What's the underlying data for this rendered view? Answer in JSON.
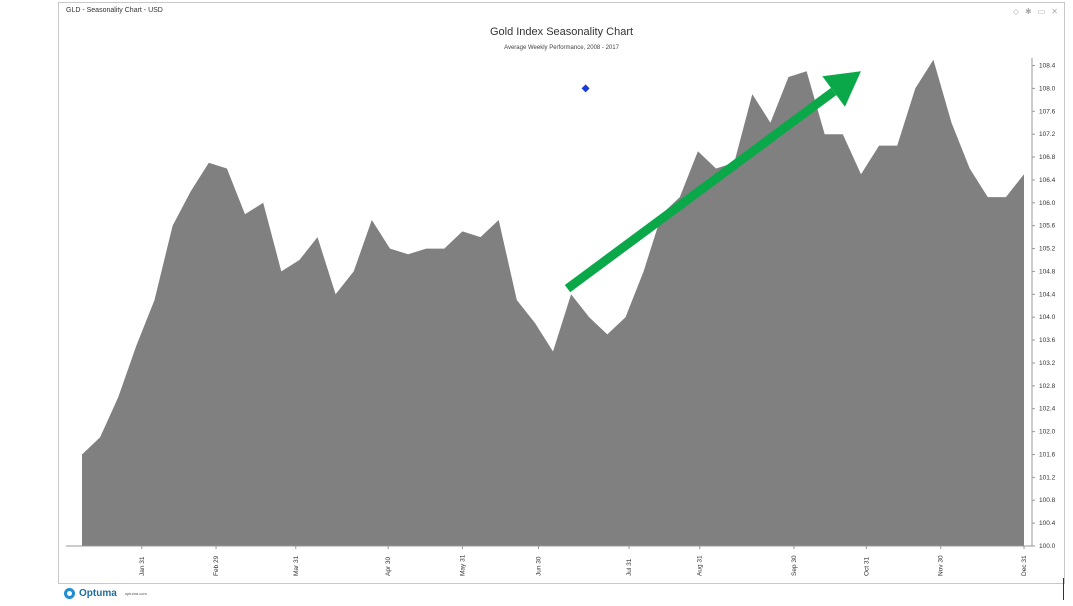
{
  "window": {
    "title": "GLD - Seasonality Chart - USD",
    "controls": [
      "◇",
      "✱",
      "▭",
      "✕"
    ]
  },
  "brand": {
    "name": "Optuma",
    "url": "optuma.com",
    "color": "#1e8fd6"
  },
  "colors": {
    "area": "#808080",
    "arrow": "#0ba84a",
    "marker": "#1a3adb",
    "axis": "#999999"
  },
  "chart_data": {
    "type": "area",
    "title": "Gold Index Seasonality Chart",
    "subtitle": "Average Weekly Performance, 2008 - 2017",
    "xlabel": "",
    "ylabel": "",
    "ylim": [
      100.0,
      108.6
    ],
    "yticks": [
      "100.0",
      "100.4",
      "100.8",
      "101.2",
      "101.6",
      "102.0",
      "102.4",
      "102.8",
      "103.2",
      "103.6",
      "104.0",
      "104.4",
      "104.8",
      "105.2",
      "105.6",
      "106.0",
      "106.4",
      "106.8",
      "107.2",
      "107.6",
      "108.0",
      "108.4"
    ],
    "xticks": [
      {
        "label": "Jan 31",
        "week": 4.3
      },
      {
        "label": "Feb 29",
        "week": 8.4
      },
      {
        "label": "Mar 31",
        "week": 12.8
      },
      {
        "label": "Apr 30",
        "week": 17.9
      },
      {
        "label": "May 31",
        "week": 22.0
      },
      {
        "label": "Jun 30",
        "week": 26.2
      },
      {
        "label": "Jul 31",
        "week": 31.2
      },
      {
        "label": "Aug 31",
        "week": 35.1
      },
      {
        "label": "Sep 30",
        "week": 40.3
      },
      {
        "label": "Oct 31",
        "week": 44.3
      },
      {
        "label": "Nov 30",
        "week": 48.4
      },
      {
        "label": "Dec 31",
        "week": 53.0
      }
    ],
    "values": [
      101.6,
      101.9,
      102.6,
      103.5,
      104.3,
      105.6,
      106.2,
      106.7,
      106.6,
      105.8,
      106.0,
      104.8,
      105.0,
      105.4,
      104.4,
      104.8,
      105.7,
      105.2,
      105.1,
      105.2,
      105.2,
      105.5,
      105.4,
      105.7,
      104.3,
      103.9,
      103.4,
      104.4,
      104.0,
      103.7,
      104.0,
      104.8,
      105.8,
      106.1,
      106.9,
      106.6,
      106.7,
      107.9,
      107.4,
      108.2,
      108.3,
      107.2,
      107.2,
      106.5,
      107.0,
      107.0,
      108.0,
      108.5,
      107.4,
      106.6,
      106.1,
      106.1,
      106.5
    ],
    "annotations": [
      {
        "type": "arrow",
        "from_week": 27.8,
        "from_value": 104.5,
        "to_week": 44.0,
        "to_value": 108.3
      },
      {
        "type": "marker",
        "week": 28.8,
        "value": 108.0
      }
    ],
    "grid": false,
    "legend": "none"
  }
}
